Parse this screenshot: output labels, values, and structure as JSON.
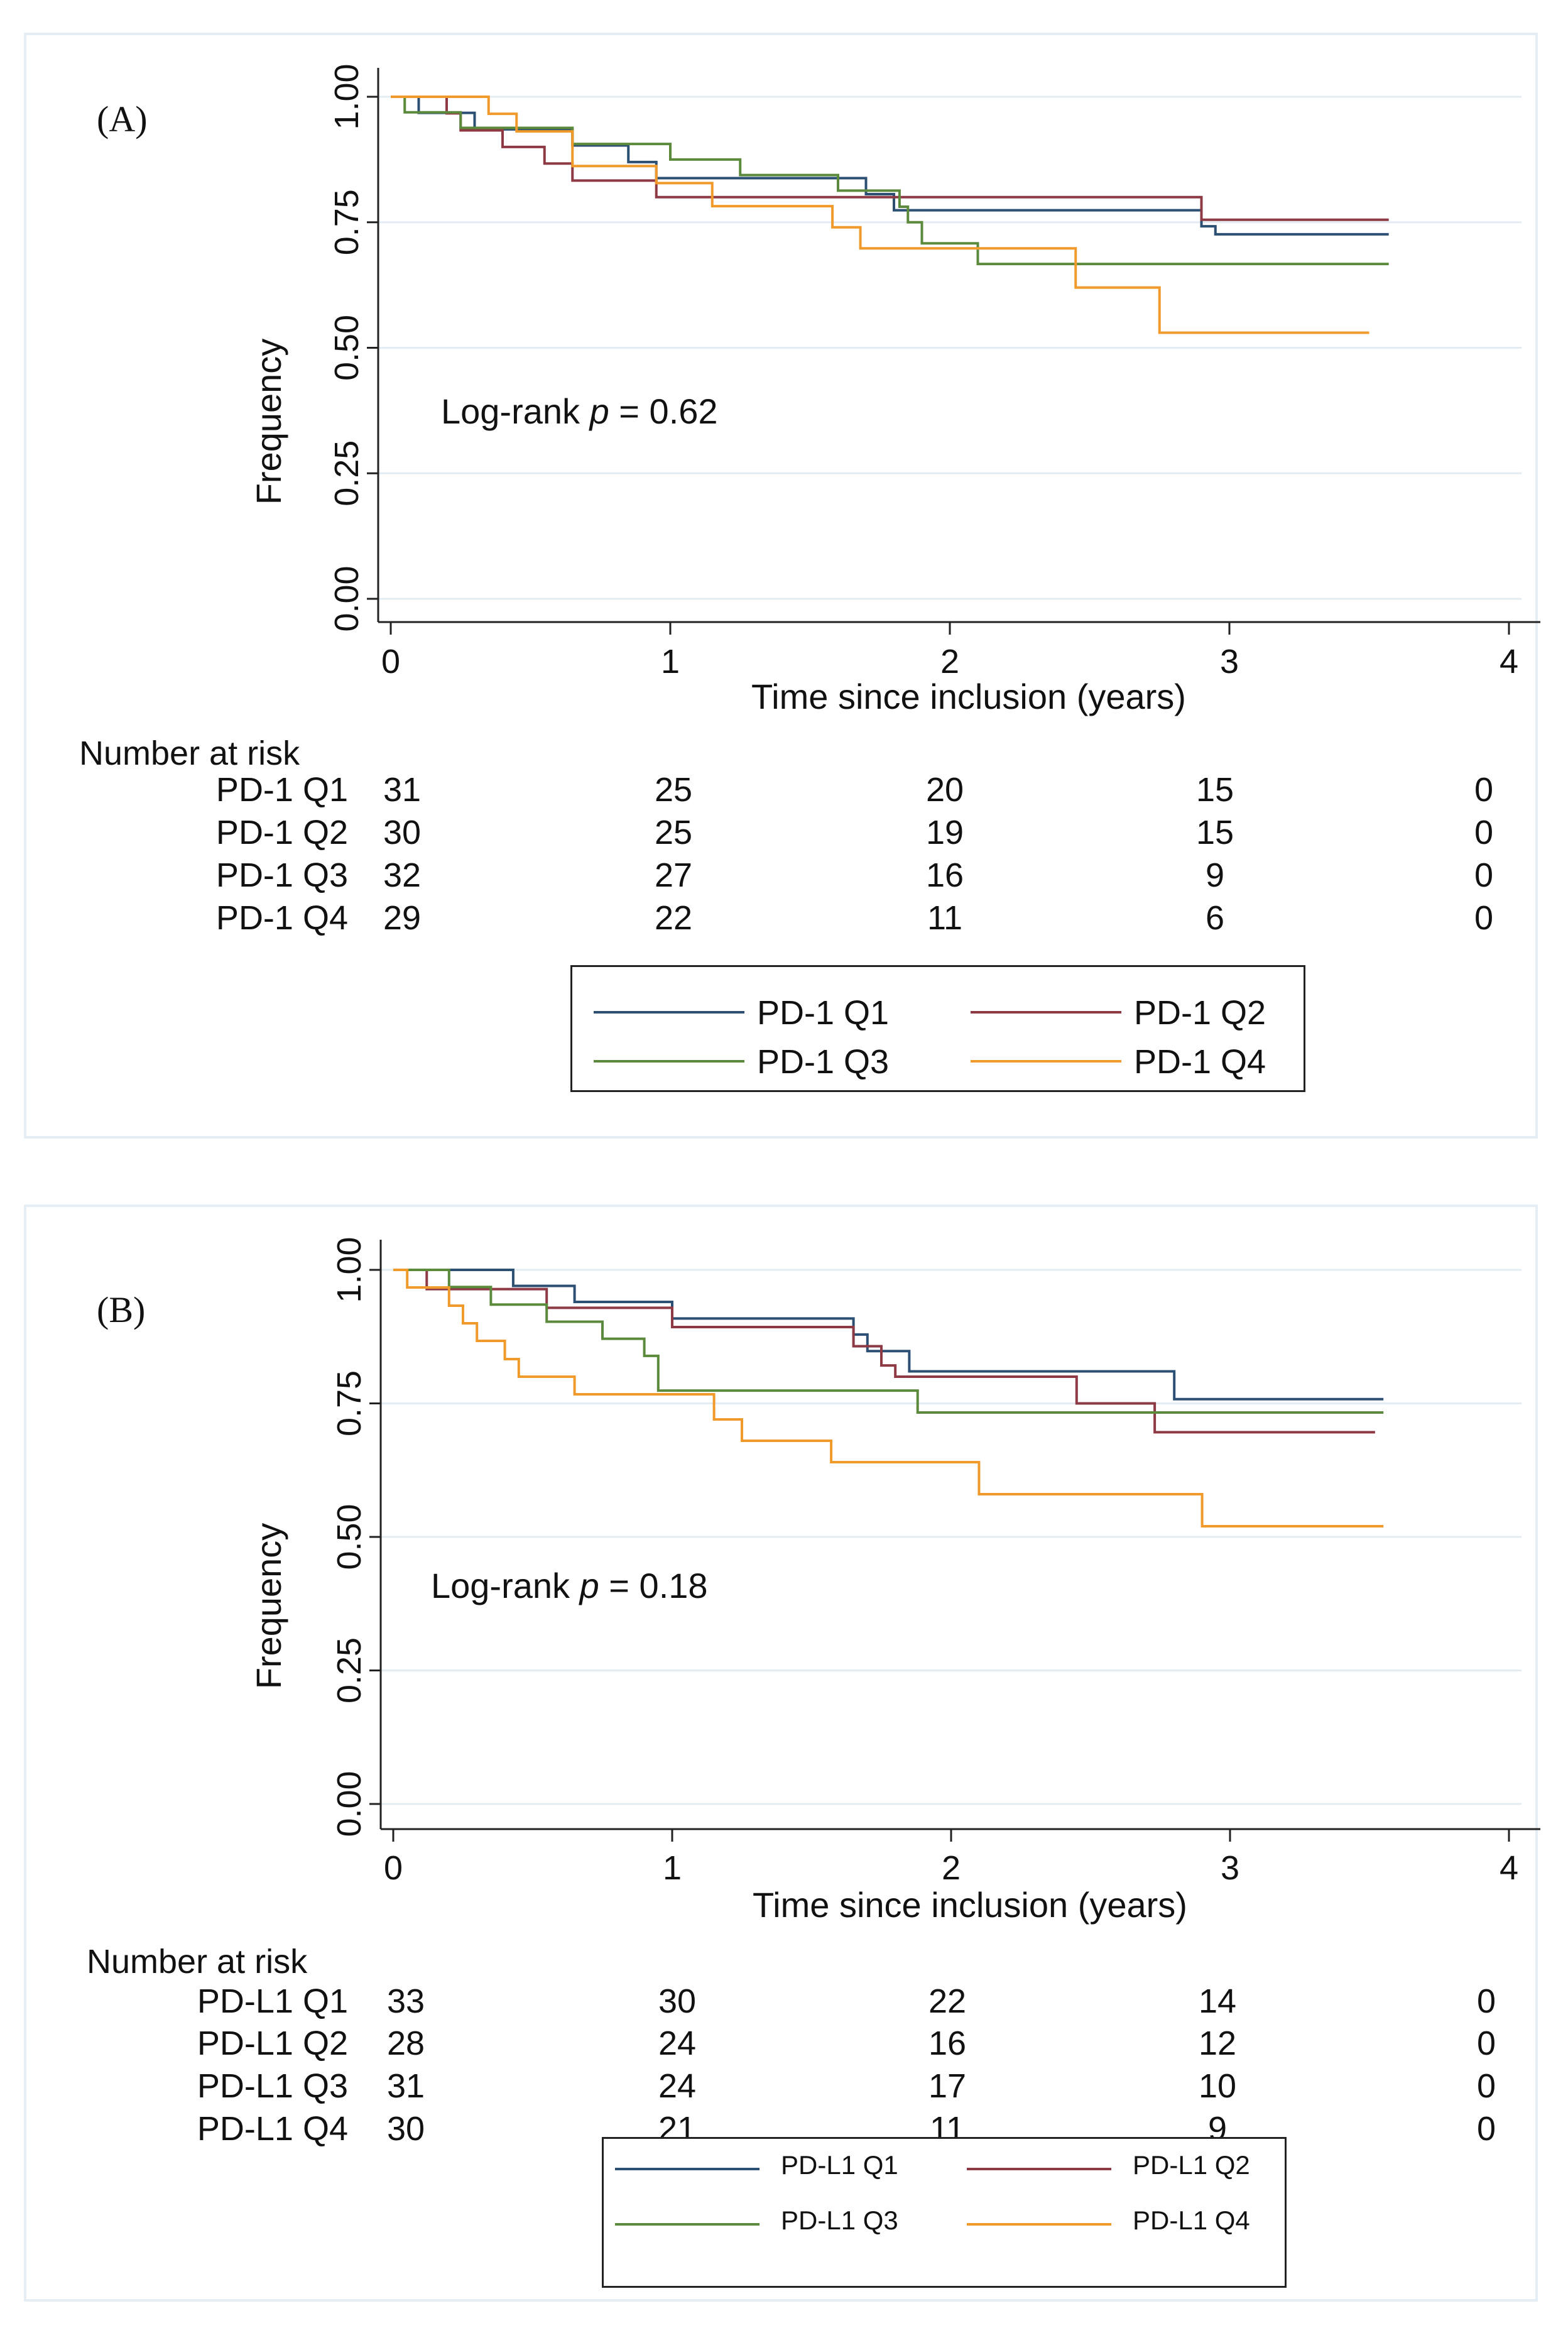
{
  "chart_data": [
    {
      "type": "line",
      "panel_label": "(A)",
      "xlabel": "Time since inclusion (years)",
      "ylabel": "Frequency",
      "xlim": [
        0,
        4
      ],
      "ylim": [
        0,
        1
      ],
      "xticks": [
        "0",
        "1",
        "2",
        "3",
        "4"
      ],
      "yticks": [
        "0.00",
        "0.25",
        "0.50",
        "0.75",
        "1.00"
      ],
      "grid": true,
      "annotation": {
        "prefix": "Log-rank ",
        "italic": "p",
        "suffix": " = 0.62"
      },
      "risk_table": {
        "title": "Number at risk",
        "times": [
          0,
          1,
          2,
          3,
          4
        ],
        "rows": [
          {
            "label": "PD-1 Q1",
            "values": [
              "31",
              "25",
              "20",
              "15",
              "0"
            ]
          },
          {
            "label": "PD-1 Q2",
            "values": [
              "30",
              "25",
              "19",
              "15",
              "0"
            ]
          },
          {
            "label": "PD-1 Q3",
            "values": [
              "32",
              "27",
              "16",
              "9",
              "0"
            ]
          },
          {
            "label": "PD-1 Q4",
            "values": [
              "29",
              "22",
              "11",
              "6",
              "0"
            ]
          }
        ]
      },
      "series": [
        {
          "name": "PD-1 Q1",
          "color": "#2c4f74",
          "steps": [
            [
              0,
              1.0
            ],
            [
              0.1,
              0.968
            ],
            [
              0.3,
              0.935
            ],
            [
              0.65,
              0.903
            ],
            [
              0.85,
              0.87
            ],
            [
              0.95,
              0.838
            ],
            [
              1.7,
              0.806
            ],
            [
              1.8,
              0.774
            ],
            [
              2.9,
              0.742
            ],
            [
              2.95,
              0.726
            ],
            [
              3.57,
              0.726
            ]
          ]
        },
        {
          "name": "PD-1 Q2",
          "color": "#8d3a45",
          "steps": [
            [
              0,
              1.0
            ],
            [
              0.2,
              0.967
            ],
            [
              0.25,
              0.933
            ],
            [
              0.4,
              0.9
            ],
            [
              0.55,
              0.867
            ],
            [
              0.65,
              0.833
            ],
            [
              0.95,
              0.8
            ],
            [
              2.9,
              0.755
            ],
            [
              3.57,
              0.755
            ]
          ]
        },
        {
          "name": "PD-1 Q3",
          "color": "#5c8a3c",
          "steps": [
            [
              0,
              1.0
            ],
            [
              0.05,
              0.969
            ],
            [
              0.25,
              0.938
            ],
            [
              0.65,
              0.906
            ],
            [
              1.0,
              0.875
            ],
            [
              1.25,
              0.844
            ],
            [
              1.6,
              0.813
            ],
            [
              1.82,
              0.781
            ],
            [
              1.85,
              0.75
            ],
            [
              1.9,
              0.708
            ],
            [
              2.1,
              0.667
            ],
            [
              3.57,
              0.667
            ]
          ]
        },
        {
          "name": "PD-1 Q4",
          "color": "#f09a2c",
          "steps": [
            [
              0,
              1.0
            ],
            [
              0.35,
              0.966
            ],
            [
              0.45,
              0.931
            ],
            [
              0.65,
              0.862
            ],
            [
              0.95,
              0.828
            ],
            [
              1.15,
              0.782
            ],
            [
              1.58,
              0.74
            ],
            [
              1.68,
              0.698
            ],
            [
              2.45,
              0.62
            ],
            [
              2.75,
              0.53
            ],
            [
              3.5,
              0.53
            ]
          ]
        }
      ],
      "legend": [
        "PD-1 Q1",
        "PD-1 Q2",
        "PD-1 Q3",
        "PD-1 Q4"
      ],
      "legend_position": "bottom"
    },
    {
      "type": "line",
      "panel_label": "(B)",
      "xlabel": "Time since inclusion (years)",
      "ylabel": "Frequency",
      "xlim": [
        0,
        4
      ],
      "ylim": [
        0,
        1
      ],
      "xticks": [
        "0",
        "1",
        "2",
        "3",
        "4"
      ],
      "yticks": [
        "0.00",
        "0.25",
        "0.50",
        "0.75",
        "1.00"
      ],
      "grid": true,
      "annotation": {
        "prefix": "Log-rank ",
        "italic": "p",
        "suffix": " = 0.18"
      },
      "risk_table": {
        "title": "Number at risk",
        "times": [
          0,
          1,
          2,
          3,
          4
        ],
        "rows": [
          {
            "label": "PD-L1 Q1",
            "values": [
              "33",
              "30",
              "22",
              "14",
              "0"
            ]
          },
          {
            "label": "PD-L1 Q2",
            "values": [
              "28",
              "24",
              "16",
              "12",
              "0"
            ]
          },
          {
            "label": "PD-L1 Q3",
            "values": [
              "31",
              "24",
              "17",
              "10",
              "0"
            ]
          },
          {
            "label": "PD-L1 Q4",
            "values": [
              "30",
              "21",
              "11",
              "9",
              "0"
            ]
          }
        ]
      },
      "series": [
        {
          "name": "PD-L1 Q1",
          "color": "#2c4f74",
          "steps": [
            [
              0,
              1.0
            ],
            [
              0.43,
              0.97
            ],
            [
              0.65,
              0.94
            ],
            [
              1.0,
              0.909
            ],
            [
              1.65,
              0.879
            ],
            [
              1.7,
              0.848
            ],
            [
              1.85,
              0.81
            ],
            [
              2.8,
              0.758
            ],
            [
              3.55,
              0.758
            ]
          ]
        },
        {
          "name": "PD-L1 Q2",
          "color": "#8d3a45",
          "steps": [
            [
              0,
              1.0
            ],
            [
              0.12,
              0.964
            ],
            [
              0.55,
              0.929
            ],
            [
              1.0,
              0.893
            ],
            [
              1.65,
              0.857
            ],
            [
              1.75,
              0.821
            ],
            [
              1.8,
              0.8
            ],
            [
              2.45,
              0.75
            ],
            [
              2.73,
              0.696
            ],
            [
              3.52,
              0.696
            ]
          ]
        },
        {
          "name": "PD-L1 Q3",
          "color": "#5c8a3c",
          "steps": [
            [
              0,
              1.0
            ],
            [
              0.2,
              0.968
            ],
            [
              0.35,
              0.935
            ],
            [
              0.55,
              0.903
            ],
            [
              0.75,
              0.871
            ],
            [
              0.9,
              0.839
            ],
            [
              0.95,
              0.774
            ],
            [
              1.88,
              0.733
            ],
            [
              3.55,
              0.733
            ]
          ]
        },
        {
          "name": "PD-L1 Q4",
          "color": "#f09a2c",
          "steps": [
            [
              0,
              1.0
            ],
            [
              0.05,
              0.967
            ],
            [
              0.2,
              0.933
            ],
            [
              0.25,
              0.9
            ],
            [
              0.3,
              0.867
            ],
            [
              0.4,
              0.833
            ],
            [
              0.45,
              0.8
            ],
            [
              0.65,
              0.767
            ],
            [
              1.15,
              0.72
            ],
            [
              1.25,
              0.68
            ],
            [
              1.57,
              0.64
            ],
            [
              2.1,
              0.58
            ],
            [
              2.9,
              0.52
            ],
            [
              3.55,
              0.52
            ]
          ]
        }
      ],
      "legend": [
        "PD-L1 Q1",
        "PD-L1 Q2",
        "PD-L1 Q3",
        "PD-L1 Q4"
      ],
      "legend_position": "bottom"
    }
  ]
}
